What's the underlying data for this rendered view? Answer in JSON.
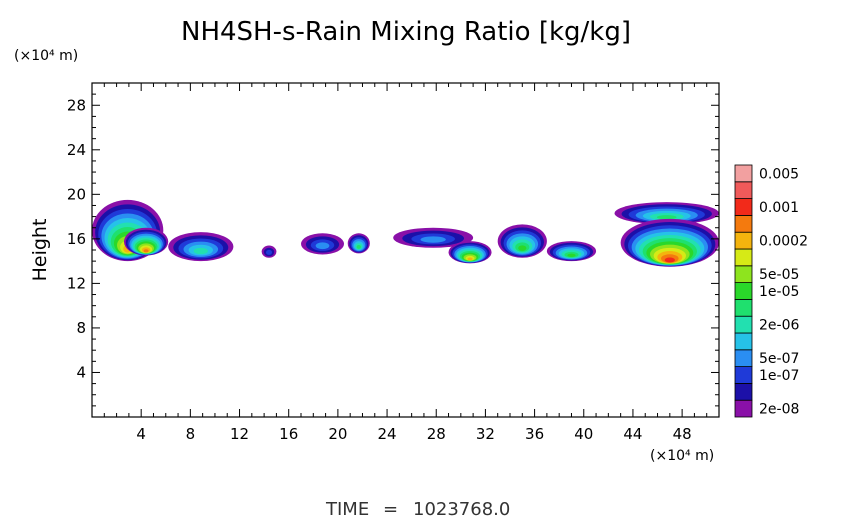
{
  "chart_data": {
    "type": "heatmap",
    "title": "NH4SH-s-Rain Mixing Ratio [kg/kg]",
    "ylabel": "Height",
    "xlabel": "",
    "x_unit": "(×10⁴ m)",
    "y_unit": "(×10⁴ m)",
    "xlim": [
      0,
      51
    ],
    "ylim": [
      0,
      30
    ],
    "x_ticks": [
      4,
      8,
      12,
      16,
      20,
      24,
      28,
      32,
      36,
      40,
      44,
      48
    ],
    "y_ticks": [
      4,
      8,
      12,
      16,
      20,
      24,
      28
    ],
    "grid": false,
    "colorbar": {
      "placement": "right",
      "levels": [
        {
          "label": "2e-08",
          "color": "#8a10a8"
        },
        {
          "label": "",
          "color": "#1c10a8"
        },
        {
          "label": "1e-07",
          "color": "#1f3ad8"
        },
        {
          "label": "5e-07",
          "color": "#2a8ef2"
        },
        {
          "label": "",
          "color": "#26c2e8"
        },
        {
          "label": "2e-06",
          "color": "#22e0b0"
        },
        {
          "label": "",
          "color": "#1fe06e"
        },
        {
          "label": "1e-05",
          "color": "#2ad82a"
        },
        {
          "label": "5e-05",
          "color": "#8ee41e"
        },
        {
          "label": "",
          "color": "#d6ea16"
        },
        {
          "label": "0.0002",
          "color": "#f4b40e"
        },
        {
          "label": "",
          "color": "#f47a0e"
        },
        {
          "label": "0.001",
          "color": "#f22a1a"
        },
        {
          "label": "",
          "color": "#f05a5a"
        },
        {
          "label": "0.005",
          "color": "#f2a0a0"
        }
      ]
    },
    "blobs": [
      {
        "x0": 0.0,
        "x1": 5.8,
        "y0": 14.0,
        "y1": 19.5,
        "peak": 10
      },
      {
        "x0": 2.6,
        "x1": 6.2,
        "y0": 14.5,
        "y1": 17.0,
        "peak": 11
      },
      {
        "x0": 6.2,
        "x1": 11.5,
        "y0": 14.0,
        "y1": 16.6,
        "peak": 5
      },
      {
        "x0": 13.8,
        "x1": 15.0,
        "y0": 14.3,
        "y1": 15.4,
        "peak": 2
      },
      {
        "x0": 17.0,
        "x1": 20.5,
        "y0": 14.6,
        "y1": 16.5,
        "peak": 3
      },
      {
        "x0": 20.8,
        "x1": 22.6,
        "y0": 14.7,
        "y1": 16.5,
        "peak": 6
      },
      {
        "x0": 24.5,
        "x1": 31.0,
        "y0": 15.2,
        "y1": 17.0,
        "peak": 3
      },
      {
        "x0": 29.0,
        "x1": 32.5,
        "y0": 13.8,
        "y1": 15.8,
        "peak": 10
      },
      {
        "x0": 33.0,
        "x1": 37.0,
        "y0": 14.3,
        "y1": 17.3,
        "peak": 7
      },
      {
        "x0": 37.0,
        "x1": 41.0,
        "y0": 14.0,
        "y1": 15.8,
        "peak": 7
      },
      {
        "x0": 42.5,
        "x1": 51.0,
        "y0": 17.3,
        "y1": 19.3,
        "peak": 6
      },
      {
        "x0": 43.0,
        "x1": 51.0,
        "y0": 13.5,
        "y1": 17.8,
        "peak": 12
      }
    ]
  },
  "footer": {
    "time_label": "TIME",
    "equals": "=",
    "time_value": "1023768.0"
  }
}
